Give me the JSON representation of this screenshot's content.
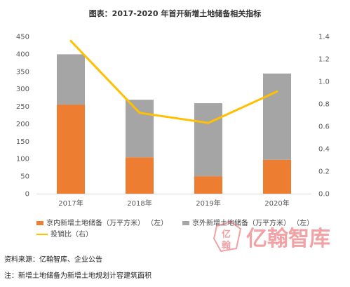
{
  "chart_data": {
    "type": "bar",
    "title": "图表：2017-2020 年首开新增土地储备相关指标",
    "categories": [
      "2017年",
      "2018年",
      "2019年",
      "2020年"
    ],
    "series": [
      {
        "name": "京内新增土地储备（万平方米）  （左）",
        "type": "bar",
        "axis": "left",
        "values": [
          255,
          104,
          50,
          97
        ],
        "color": "#ED7D31"
      },
      {
        "name": "京外新增土地储备（万平方米）  （左）",
        "type": "bar",
        "axis": "left",
        "values": [
          144,
          165,
          209,
          247
        ],
        "color": "#A5A5A5"
      },
      {
        "name": "投销比（右）",
        "type": "line",
        "axis": "right",
        "values": [
          1.36,
          0.72,
          0.63,
          0.91
        ],
        "color": "#FFC000"
      }
    ],
    "ylim_left": [
      0,
      450
    ],
    "yticks_left": [
      "0",
      "50",
      "100",
      "150",
      "200",
      "250",
      "300",
      "350",
      "400",
      "450"
    ],
    "ylim_right": [
      0,
      1.4
    ],
    "yticks_right": [
      "0.0",
      "0.2",
      "0.4",
      "0.6",
      "0.8",
      "1.0",
      "1.2",
      "1.4"
    ],
    "stacked": true,
    "grid": false,
    "legend_position": "bottom"
  },
  "notes": {
    "source": "资料来源：亿翰智库、企业公告",
    "note": "注：新增土地储备为新增土地规划计容建筑面积"
  },
  "watermark": {
    "logo_char_top": "亿",
    "logo_char_bottom": "翰",
    "text": "亿翰智库",
    "color": "#E8565C"
  }
}
